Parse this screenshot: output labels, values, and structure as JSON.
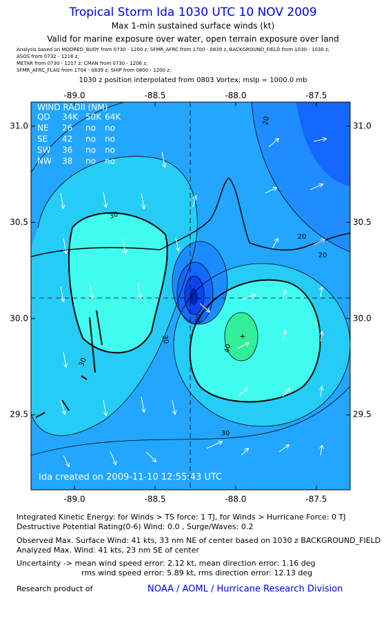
{
  "header": {
    "title": "Tropical Storm Ida 1030 UTC 10 NOV 2009",
    "subtitle": "Max 1-min sustained surface winds (kt)",
    "validity": "Valid for marine exposure over water, open terrain exposure over land",
    "sources": [
      "Analysis based on  MOORED_BUOY from 0730 - 1200 z;  SFMR_AFRC from 1700 - 0839 z;  BACKGROUND_FIELD from 1030 - 1030 z;",
      "ASOS from 0732 - 1216 z;",
      "METAR from 0730 - 1217 z;  CMAN from 0730 - 1206 z;",
      "SFMR_AFRC_FLAG from 1704 - 0839 z;  SHIP from 0800 - 1200 z;"
    ],
    "position_note": "1030 z position interpolated from 0803 Vortex; mslp = 1000.0 mb"
  },
  "map": {
    "xlim": [
      -89.27,
      -87.29
    ],
    "ylim": [
      29.11,
      31.125
    ],
    "xticks": [
      {
        "value": -89,
        "label": "-89.0"
      },
      {
        "value": -88.5,
        "label": "-88.5"
      },
      {
        "value": -88,
        "label": "-88.0"
      },
      {
        "value": -87.5,
        "label": "-87.5"
      }
    ],
    "yticks": [
      {
        "value": 31,
        "label": "31.0"
      },
      {
        "value": 30.5,
        "label": "30.5"
      },
      {
        "value": 30,
        "label": "30.0"
      },
      {
        "value": 29.5,
        "label": "29.5"
      }
    ],
    "contour_labels": [
      20,
      30,
      20,
      30,
      30,
      20,
      40,
      30,
      20
    ],
    "wind_radii": {
      "title": "WIND RADII (NM)",
      "columns": [
        "QD",
        "34K",
        "50K",
        "64K"
      ],
      "rows": [
        [
          "NE",
          26,
          "no",
          "no"
        ],
        [
          "SE",
          42,
          "no",
          "no"
        ],
        [
          "SW",
          36,
          "no",
          "no"
        ],
        [
          "NW",
          38,
          "no",
          "no"
        ]
      ]
    },
    "timestamp": "Ida   created on 2009-11-10 12:55:43 UTC"
  },
  "footer": {
    "lines": [
      "Integrated Kinetic Energy:  for Winds > TS force: 1 TJ,  for Winds > Hurricane Force: 0 TJ",
      "Destructive Potential Rating(0-6)   Wind: 0.0 , Surge/Waves: 0.2",
      "Observed Max. Surface Wind: 41 kts, 33 nm NE of center based on 1030 z BACKGROUND_FIELD",
      "Analyzed Max. Wind: 41 kts, 23 nm SE of center",
      "Uncertainty -> mean wind speed error: 2.12 kt,   mean direction error: 1.16 deg",
      "rms wind speed error: 5.89 kt,   rms direction error: 12.13 deg"
    ],
    "credit": "Research product of",
    "organization": "NOAA / AOML / Hurricane Research Division"
  }
}
